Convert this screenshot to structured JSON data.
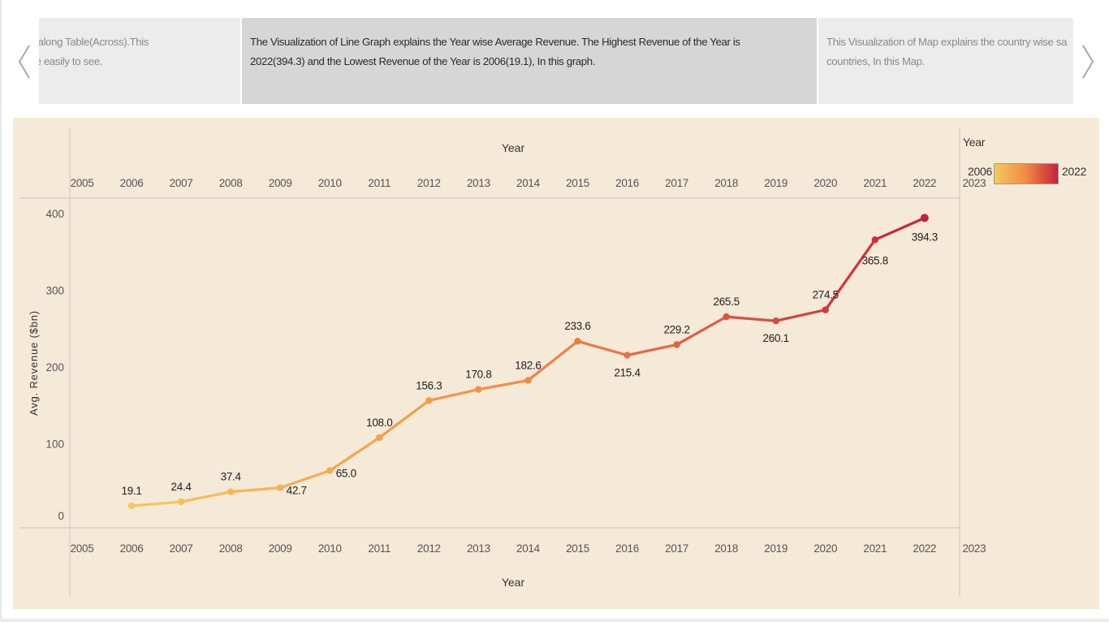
{
  "story": {
    "prev_caption": [
      "nnual Share along Table(Across).This",
      "e can be take easily to see."
    ],
    "current_caption": [
      "The Visualization of Line Graph explains the Year wise Average Revenue. The Highest Revenue of the Year is",
      "2022(394.3) and the Lowest Revenue of the Year is 2006(19.1), In this graph."
    ],
    "next_caption": [
      "This Visualization of Map explains the country wise sa",
      "countries, In this Map."
    ]
  },
  "legend": {
    "title": "Year",
    "min_label": "2006",
    "max_label": "2022",
    "color_low": "#f7c95c",
    "color_high": "#c4223a"
  },
  "chart_data": {
    "type": "line",
    "title": "",
    "xlabel": "Year",
    "ylabel": "Avg. Revenue ($bn)",
    "x": [
      2006,
      2007,
      2008,
      2009,
      2010,
      2011,
      2012,
      2013,
      2014,
      2015,
      2016,
      2017,
      2018,
      2019,
      2020,
      2021,
      2022
    ],
    "values": [
      19.1,
      24.4,
      37.4,
      42.7,
      65.0,
      108.0,
      156.3,
      170.8,
      182.6,
      233.6,
      215.4,
      229.2,
      265.5,
      260.1,
      274.5,
      365.8,
      394.3
    ],
    "data_labels": [
      "19.1",
      "24.4",
      "37.4",
      "42.7",
      "65.0",
      "108.0",
      "156.3",
      "170.8",
      "182.6",
      "233.6",
      "215.4",
      "229.2",
      "265.5",
      "260.1",
      "274.5",
      "365.8",
      "394.3"
    ],
    "x_ticks": [
      "2005",
      "2006",
      "2007",
      "2008",
      "2009",
      "2010",
      "2011",
      "2012",
      "2013",
      "2014",
      "2015",
      "2016",
      "2017",
      "2018",
      "2019",
      "2020",
      "2021",
      "2022",
      "2023"
    ],
    "y_ticks": [
      "0",
      "100",
      "200",
      "300",
      "400"
    ],
    "xlim": [
      2005,
      2023
    ],
    "ylim": [
      0,
      400
    ],
    "grid": false,
    "x_axis_top_and_bottom": true,
    "color_by": "Year",
    "legend_position": "top-right"
  }
}
